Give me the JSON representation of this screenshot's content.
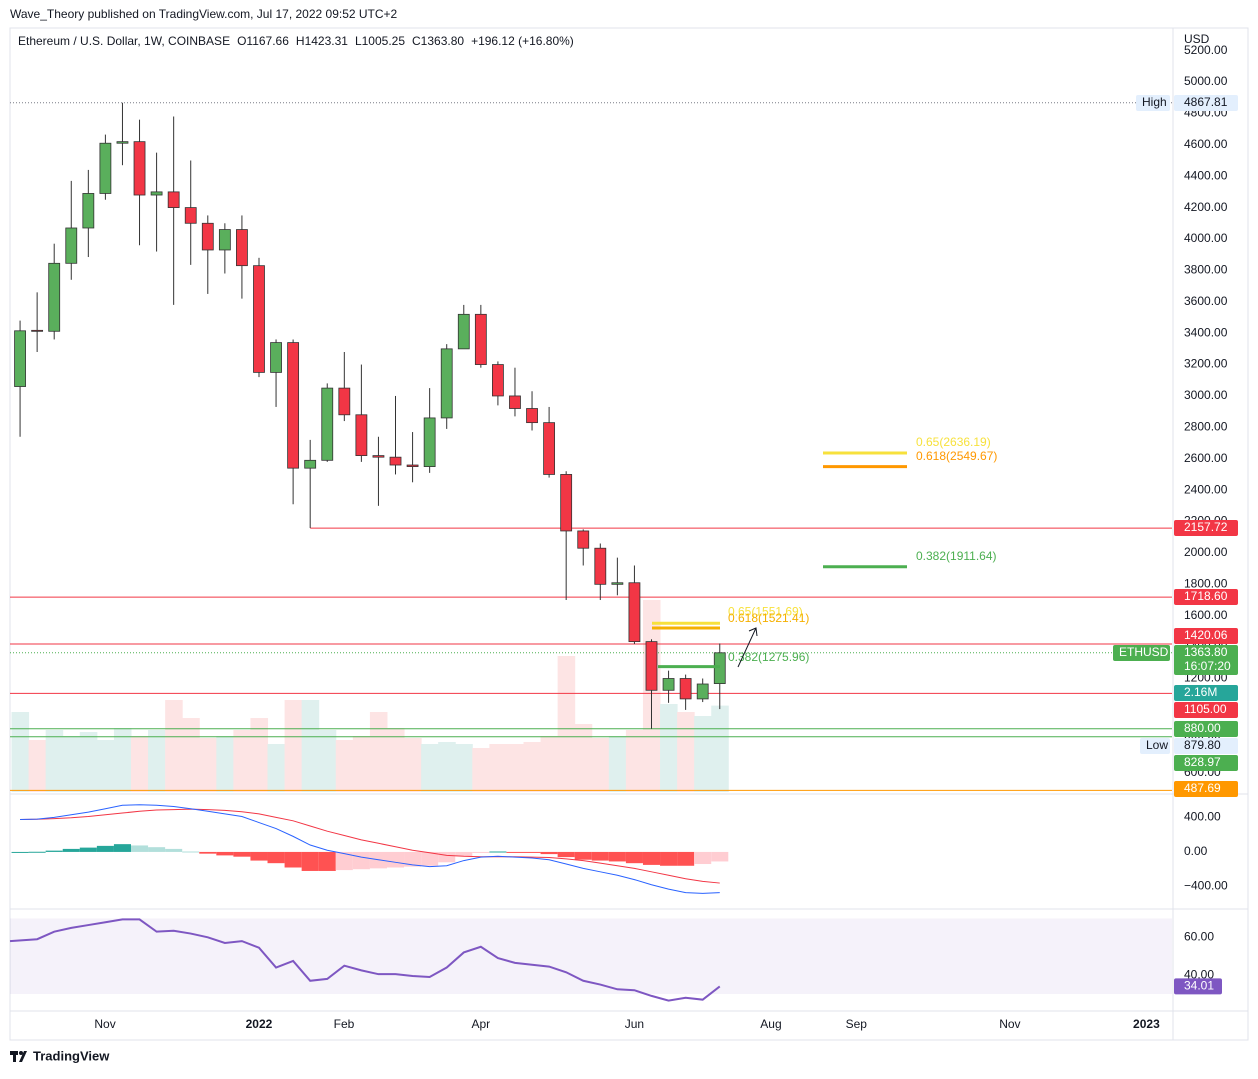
{
  "header": "Wave_Theory published on TradingView.com, Jul 17, 2022 09:52 UTC+2",
  "footer": "TradingView",
  "chart_data": [
    {
      "type": "candlestick",
      "legend": {
        "symbol": "Ethereum / U.S. Dollar, 1W, COINBASE",
        "open": "O1167.66",
        "high": "H1423.31",
        "low": "L1005.25",
        "close": "C1363.80",
        "change": "+196.12 (+16.80%)"
      },
      "axis_unit": "USD",
      "open": [
        3060,
        3418,
        3412,
        3845,
        4070,
        4290,
        4610,
        4620,
        4280,
        4300,
        4200,
        4100,
        3930,
        4060,
        3830,
        3150,
        3340,
        2540,
        2590,
        3050,
        2880,
        2620,
        2610,
        2560,
        2550,
        2860,
        3300,
        3520,
        3200,
        3000,
        2920,
        2830,
        2500,
        2140,
        2030,
        1800,
        1810,
        1435,
        1125,
        1200,
        1070,
        1167.66
      ],
      "high": [
        3480,
        3660,
        3970,
        4370,
        4440,
        4665,
        4867.81,
        4760,
        4550,
        4780,
        4500,
        4150,
        4100,
        4150,
        3880,
        3360,
        3360,
        2720,
        3080,
        3280,
        3200,
        2740,
        3000,
        2770,
        3050,
        3330,
        3580,
        3580,
        3220,
        3180,
        3030,
        2930,
        2520,
        2150,
        2060,
        1970,
        1920,
        1450,
        1250,
        1225,
        1200,
        1423.31
      ],
      "low": [
        2740,
        3280,
        3360,
        3740,
        3885,
        4250,
        4470,
        3960,
        3920,
        3580,
        3835,
        3650,
        3780,
        3620,
        3120,
        2930,
        2310,
        2159,
        2580,
        2840,
        2580,
        2300,
        2500,
        2450,
        2510,
        2790,
        3300,
        3180,
        2940,
        2870,
        2780,
        2480,
        1700,
        1920,
        1700,
        1730,
        1420,
        879.8,
        1045,
        1000,
        1050,
        1005.25
      ],
      "close": [
        3415,
        3412,
        3845,
        4070,
        4290,
        4610,
        4620,
        4280,
        4300,
        4200,
        4100,
        3930,
        4060,
        3830,
        3150,
        3340,
        2540,
        2590,
        3050,
        2880,
        2620,
        2610,
        2560,
        2550,
        2860,
        3300,
        3520,
        3200,
        3000,
        2920,
        2830,
        2500,
        2140,
        2030,
        1800,
        1810,
        1435,
        1125,
        1200,
        1070,
        1165,
        1363.8
      ],
      "colors": {
        "up": "#5aaf5c",
        "down": "#f23645",
        "border": "#333333"
      },
      "ylim": [
        477,
        5344
      ],
      "yticks": [
        {
          "value": 5200,
          "label": "5200.00"
        },
        {
          "value": 5000,
          "label": "5000.00"
        },
        {
          "value": 4800,
          "label": "4800.00"
        },
        {
          "value": 4600,
          "label": "4600.00"
        },
        {
          "value": 4400,
          "label": "4400.00"
        },
        {
          "value": 4200,
          "label": "4200.00"
        },
        {
          "value": 4000,
          "label": "4000.00"
        },
        {
          "value": 3800,
          "label": "3800.00"
        },
        {
          "value": 3600,
          "label": "3600.00"
        },
        {
          "value": 3400,
          "label": "3400.00"
        },
        {
          "value": 3200,
          "label": "3200.00"
        },
        {
          "value": 3000,
          "label": "3000.00"
        },
        {
          "value": 2800,
          "label": "2800.00"
        },
        {
          "value": 2600,
          "label": "2600.00"
        },
        {
          "value": 2400,
          "label": "2400.00"
        },
        {
          "value": 2200,
          "label": "2200.00"
        },
        {
          "value": 2000,
          "label": "2000.00"
        },
        {
          "value": 1800,
          "label": "1800.00"
        },
        {
          "value": 1600,
          "label": "1600.00"
        },
        {
          "value": 1400,
          "label": "1400.00"
        },
        {
          "value": 1200,
          "label": "1200.00"
        },
        {
          "value": 1000,
          "label": "1000.00"
        },
        {
          "value": 800,
          "label": "800.00"
        },
        {
          "value": 600,
          "label": "600.00"
        }
      ],
      "xlim": [
        -0.59,
        67.5
      ],
      "xticks": [
        {
          "value": 4.98,
          "label": "Nov"
        },
        {
          "value": 14.0,
          "label": "2022"
        },
        {
          "value": 18.98,
          "label": "Feb"
        },
        {
          "value": 27.0,
          "label": "Apr"
        },
        {
          "value": 36.0,
          "label": "Jun"
        },
        {
          "value": 44.0,
          "label": "Aug"
        },
        {
          "value": 49.0,
          "label": "Sep"
        },
        {
          "value": 58.0,
          "label": "Nov"
        },
        {
          "value": 66.0,
          "label": "2023"
        }
      ],
      "grid": false,
      "volume": {
        "values": [
          2.0,
          1.3,
          1.55,
          1.4,
          1.5,
          1.3,
          1.6,
          1.4,
          1.55,
          2.3,
          1.85,
          1.35,
          1.4,
          1.55,
          1.85,
          1.2,
          2.3,
          2.3,
          1.55,
          1.3,
          1.4,
          2.0,
          1.6,
          1.35,
          1.2,
          1.25,
          1.2,
          1.1,
          1.2,
          1.2,
          1.25,
          1.4,
          3.4,
          1.7,
          1.35,
          1.4,
          1.55,
          4.8,
          2.2,
          2.0,
          1.9,
          2.16
        ],
        "ylim": [
          0,
          19.1
        ],
        "value_label": "2.16M",
        "colors": {
          "up": "#dff0ee",
          "down": "#fde4e4",
          "tag": "#26a69a"
        }
      },
      "hlines": [
        {
          "value": 2157.72,
          "label": "2157.72",
          "color": "#f23645"
        },
        {
          "value": 1718.6,
          "label": "1718.60",
          "color": "#f23645"
        },
        {
          "value": 1420.06,
          "label": "1420.06",
          "color": "#f23645"
        },
        {
          "value": 1105,
          "label": "1105.00",
          "color": "#f23645"
        },
        {
          "value": 880,
          "label": "880.00",
          "color": "#4caf50"
        },
        {
          "value": 828.97,
          "label": "828.97",
          "color": "#4caf50"
        },
        {
          "value": 487.69,
          "label": "487.69",
          "color": "#ff9800"
        }
      ],
      "high_marker": {
        "label": "High",
        "value": 4867.81
      },
      "low_marker": {
        "label": "Low",
        "value": 879.8,
        "value_label": "879.80"
      },
      "last_price": {
        "name": "ETHUSD",
        "value": 1363.8,
        "value_label": "1363.80",
        "countdown": "16:07:20",
        "color": "#4caf50"
      },
      "fib_levels": [
        {
          "label": "0.65(2636.19)",
          "value": 2636.19,
          "color": "#f7e13c"
        },
        {
          "label": "0.618(2549.67)",
          "value": 2549.67,
          "color": "#ff9800"
        },
        {
          "label": "0.382(1911.64)",
          "value": 1911.64,
          "color": "#4caf50"
        },
        {
          "label": "0.65(1551.69)",
          "value": 1551.69,
          "color": "#f7e13c"
        },
        {
          "label": "0.618(1521.41)",
          "value": 1521.41,
          "color": "#f5b000"
        },
        {
          "label": "0.382(1275.96)",
          "value": 1275.96,
          "color": "#4caf50"
        }
      ]
    },
    {
      "type": "macd",
      "macd": {
        "values": [
          375,
          380,
          400,
          430,
          460,
          500,
          540,
          545,
          540,
          525,
          500,
          470,
          440,
          410,
          340,
          270,
          180,
          80,
          20,
          -20,
          -60,
          -90,
          -120,
          -150,
          -170,
          -160,
          -100,
          -60,
          -50,
          -60,
          -70,
          -90,
          -140,
          -190,
          -230,
          -270,
          -320,
          -380,
          -430,
          -470,
          -480,
          -470
        ],
        "color": "#2962ff"
      },
      "signal": {
        "values": [
          375,
          378,
          385,
          395,
          410,
          430,
          450,
          470,
          485,
          490,
          495,
          490,
          480,
          465,
          440,
          400,
          360,
          300,
          240,
          190,
          140,
          100,
          60,
          20,
          -10,
          -40,
          -50,
          -55,
          -55,
          -55,
          -60,
          -65,
          -80,
          -100,
          -130,
          -160,
          -190,
          -230,
          -270,
          -310,
          -340,
          -360
        ],
        "color": "#f23645"
      },
      "histogram": {
        "values": [
          0,
          2,
          15,
          35,
          50,
          70,
          90,
          75,
          55,
          35,
          5,
          -20,
          -40,
          -55,
          -100,
          -130,
          -180,
          -220,
          -220,
          -210,
          -200,
          -190,
          -180,
          -170,
          -160,
          -120,
          -50,
          -5,
          5,
          -5,
          -10,
          -25,
          -60,
          -90,
          -100,
          -110,
          -130,
          -150,
          -160,
          -160,
          -140,
          -110
        ],
        "colors": {
          "up_grow": "#26a69a",
          "up_fall": "#b2dfdb",
          "down_fall": "#ff5252",
          "down_grow": "#ffcdd2"
        }
      },
      "ylim": [
        -660,
        670
      ],
      "yticks": [
        {
          "value": 400,
          "label": "400.00"
        },
        {
          "value": 0,
          "label": "0.00"
        },
        {
          "value": -400,
          "label": "−400.00"
        }
      ]
    },
    {
      "type": "line",
      "values": [
        58,
        59,
        63,
        65,
        66.5,
        68,
        69.5,
        69.5,
        63,
        63.5,
        62,
        60,
        57,
        58,
        54.5,
        44,
        47.5,
        37,
        38,
        45,
        42.5,
        40.5,
        40.5,
        39.5,
        39,
        44,
        52,
        55,
        49,
        46.5,
        45.5,
        44.5,
        41.5,
        37,
        35,
        32.5,
        32,
        29,
        26.5,
        28,
        27,
        34.01
      ],
      "color": "#7e57c2",
      "ylim": [
        21,
        75
      ],
      "yticks": [
        {
          "value": 60,
          "label": "60.00"
        },
        {
          "value": 40,
          "label": "40.00"
        }
      ],
      "band": [
        30,
        70
      ]
    }
  ]
}
